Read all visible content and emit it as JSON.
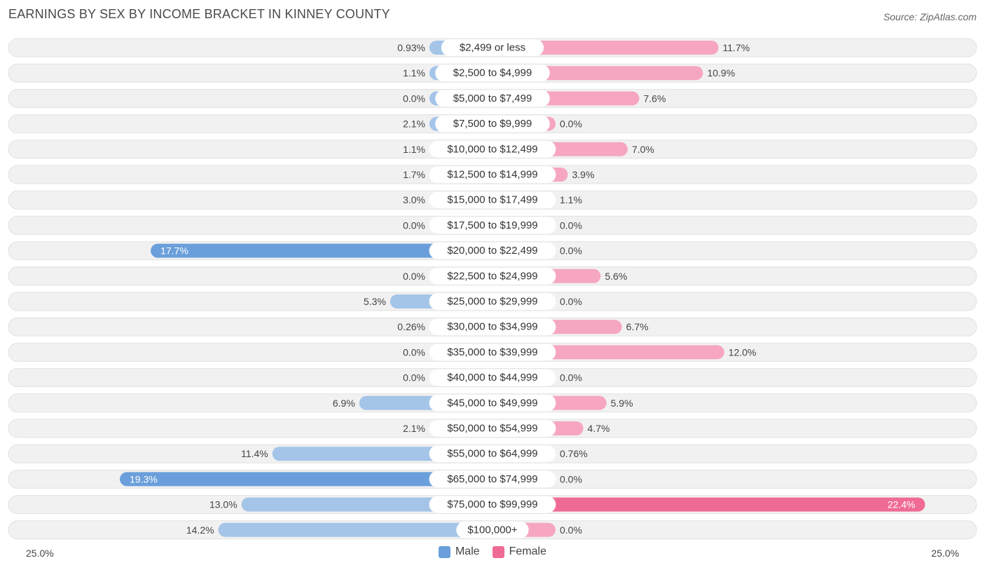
{
  "title": "EARNINGS BY SEX BY INCOME BRACKET IN KINNEY COUNTY",
  "source": "Source: ZipAtlas.com",
  "colors": {
    "male": "#a4c4e8",
    "male_strong": "#6a9fdb",
    "female": "#f6a6c1",
    "female_strong": "#f06b93",
    "row_bg": "#f1f1f1",
    "row_border": "#e2e2e2"
  },
  "legend": {
    "male": "Male",
    "female": "Female"
  },
  "axis": {
    "left_label": "25.0%",
    "right_label": "25.0%"
  },
  "chart_data": {
    "type": "bar",
    "orientation": "horizontal-diverging",
    "title": "EARNINGS BY SEX BY INCOME BRACKET IN KINNEY COUNTY",
    "xlim": [
      -25,
      25
    ],
    "categories": [
      "$2,499 or less",
      "$2,500 to $4,999",
      "$5,000 to $7,499",
      "$7,500 to $9,999",
      "$10,000 to $12,499",
      "$12,500 to $14,999",
      "$15,000 to $17,499",
      "$17,500 to $19,999",
      "$20,000 to $22,499",
      "$22,500 to $24,999",
      "$25,000 to $29,999",
      "$30,000 to $34,999",
      "$35,000 to $39,999",
      "$40,000 to $44,999",
      "$45,000 to $49,999",
      "$50,000 to $54,999",
      "$55,000 to $64,999",
      "$65,000 to $74,999",
      "$75,000 to $99,999",
      "$100,000+"
    ],
    "series": [
      {
        "name": "Male",
        "values": [
          0.93,
          1.1,
          0.0,
          2.1,
          1.1,
          1.7,
          3.0,
          0.0,
          17.7,
          0.0,
          5.3,
          0.26,
          0.0,
          0.0,
          6.9,
          2.1,
          11.4,
          19.3,
          13.0,
          14.2
        ],
        "labels": [
          "0.93%",
          "1.1%",
          "0.0%",
          "2.1%",
          "1.1%",
          "1.7%",
          "3.0%",
          "0.0%",
          "17.7%",
          "0.0%",
          "5.3%",
          "0.26%",
          "0.0%",
          "0.0%",
          "6.9%",
          "2.1%",
          "11.4%",
          "19.3%",
          "13.0%",
          "14.2%"
        ]
      },
      {
        "name": "Female",
        "values": [
          11.7,
          10.9,
          7.6,
          0.0,
          7.0,
          3.9,
          1.1,
          0.0,
          0.0,
          5.6,
          0.0,
          6.7,
          12.0,
          0.0,
          5.9,
          4.7,
          0.76,
          0.0,
          22.4,
          0.0
        ],
        "labels": [
          "11.7%",
          "10.9%",
          "7.6%",
          "0.0%",
          "7.0%",
          "3.9%",
          "1.1%",
          "0.0%",
          "0.0%",
          "5.6%",
          "0.0%",
          "6.7%",
          "12.0%",
          "0.0%",
          "5.9%",
          "4.7%",
          "0.76%",
          "0.0%",
          "22.4%",
          "0.0%"
        ]
      }
    ]
  }
}
